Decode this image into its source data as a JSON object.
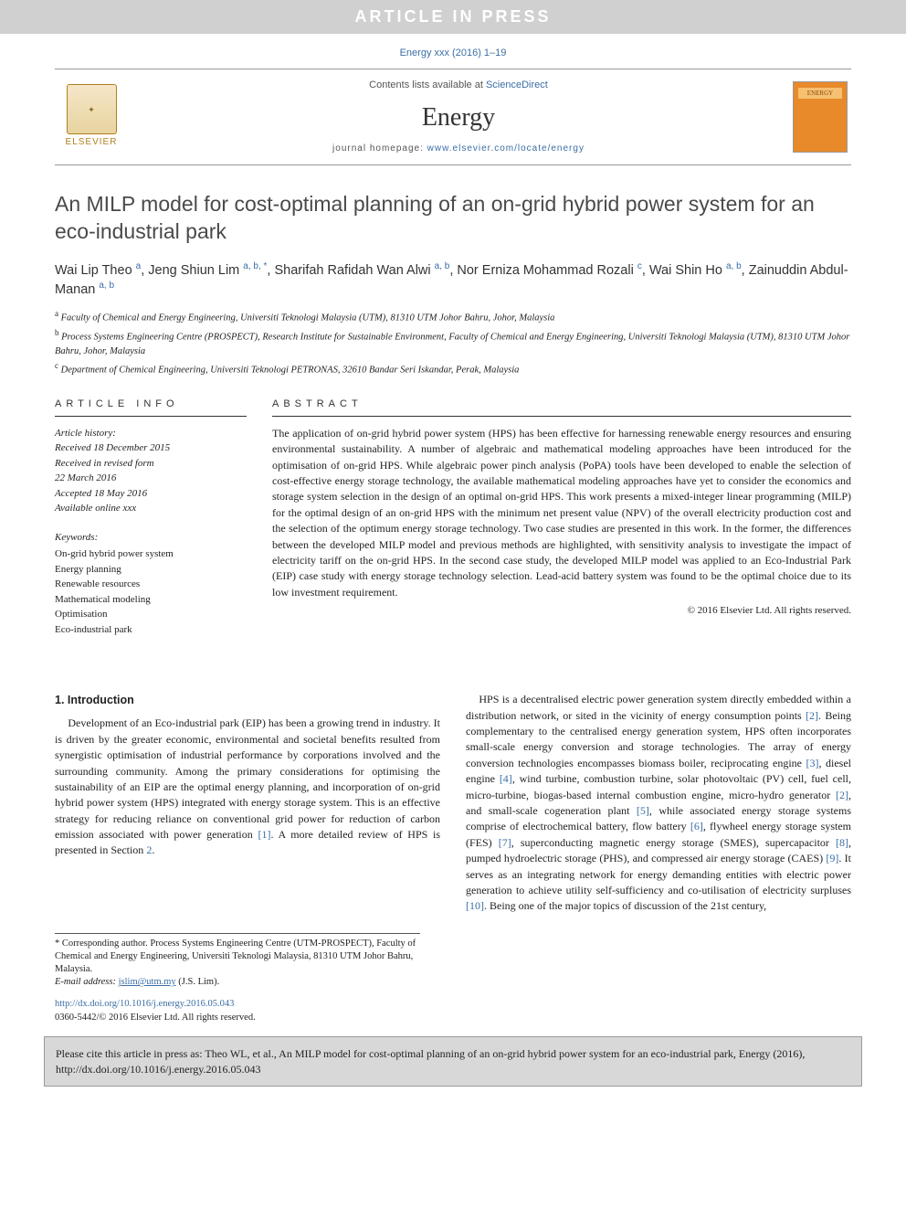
{
  "banner": "ARTICLE IN PRESS",
  "citation_top": "Energy xxx (2016) 1–19",
  "meta": {
    "contents_prefix": "Contents lists available at ",
    "contents_link": "ScienceDirect",
    "journal": "Energy",
    "homepage_prefix": "journal homepage: ",
    "homepage_link": "www.elsevier.com/locate/energy",
    "publisher": "ELSEVIER",
    "cover_label": "ENERGY"
  },
  "title": "An MILP model for cost-optimal planning of an on-grid hybrid power system for an eco-industrial park",
  "authors_html": "Wai Lip Theo <sup>a</sup>, Jeng Shiun Lim <sup>a, b, *</sup>, Sharifah Rafidah Wan Alwi <sup>a, b</sup>, Nor Erniza Mohammad Rozali <sup>c</sup>, Wai Shin Ho <sup>a, b</sup>, Zainuddin Abdul-Manan <sup>a, b</sup>",
  "affiliations": [
    {
      "sup": "a",
      "text": "Faculty of Chemical and Energy Engineering, Universiti Teknologi Malaysia (UTM), 81310 UTM Johor Bahru, Johor, Malaysia"
    },
    {
      "sup": "b",
      "text": "Process Systems Engineering Centre (PROSPECT), Research Institute for Sustainable Environment, Faculty of Chemical and Energy Engineering, Universiti Teknologi Malaysia (UTM), 81310 UTM Johor Bahru, Johor, Malaysia"
    },
    {
      "sup": "c",
      "text": "Department of Chemical Engineering, Universiti Teknologi PETRONAS, 32610 Bandar Seri Iskandar, Perak, Malaysia"
    }
  ],
  "info_head": "ARTICLE INFO",
  "abs_head": "ABSTRACT",
  "history": {
    "label": "Article history:",
    "lines": [
      "Received 18 December 2015",
      "Received in revised form",
      "22 March 2016",
      "Accepted 18 May 2016",
      "Available online xxx"
    ]
  },
  "keywords_label": "Keywords:",
  "keywords": [
    "On-grid hybrid power system",
    "Energy planning",
    "Renewable resources",
    "Mathematical modeling",
    "Optimisation",
    "Eco-industrial park"
  ],
  "abstract": "The application of on-grid hybrid power system (HPS) has been effective for harnessing renewable energy resources and ensuring environmental sustainability. A number of algebraic and mathematical modeling approaches have been introduced for the optimisation of on-grid HPS. While algebraic power pinch analysis (PoPA) tools have been developed to enable the selection of cost-effective energy storage technology, the available mathematical modeling approaches have yet to consider the economics and storage system selection in the design of an optimal on-grid HPS. This work presents a mixed-integer linear programming (MILP) for the optimal design of an on-grid HPS with the minimum net present value (NPV) of the overall electricity production cost and the selection of the optimum energy storage technology. Two case studies are presented in this work. In the former, the differences between the developed MILP model and previous methods are highlighted, with sensitivity analysis to investigate the impact of electricity tariff on the on-grid HPS. In the second case study, the developed MILP model was applied to an Eco-Industrial Park (EIP) case study with energy storage technology selection. Lead-acid battery system was found to be the optimal choice due to its low investment requirement.",
  "copyright": "© 2016 Elsevier Ltd. All rights reserved.",
  "section1_head": "1. Introduction",
  "col1_p1": "Development of an Eco-industrial park (EIP) has been a growing trend in industry. It is driven by the greater economic, environmental and societal benefits resulted from synergistic optimisation of industrial performance by corporations involved and the surrounding community. Among the primary considerations for optimising the sustainability of an EIP are the optimal energy planning, and incorporation of on-grid hybrid power system (HPS) integrated with energy storage system. This is an effective strategy for reducing reliance on conventional grid power for reduction of carbon emission associated with power generation ",
  "col1_ref1": "[1]",
  "col1_p1b": ". A more detailed review of HPS is presented in Section ",
  "col1_ref2": "2",
  "col1_p1c": ".",
  "col2_p1a": "HPS is a decentralised electric power generation system directly embedded within a distribution network, or sited in the vicinity of energy consumption points ",
  "col2_ref2": "[2]",
  "col2_p1b": ". Being complementary to the centralised energy generation system, HPS often incorporates small-scale energy conversion and storage technologies. The array of energy conversion technologies encompasses biomass boiler, reciprocating engine ",
  "col2_ref3": "[3]",
  "col2_p1c": ", diesel engine ",
  "col2_ref4": "[4]",
  "col2_p1d": ", wind turbine, combustion turbine, solar photovoltaic (PV) cell, fuel cell, micro-turbine, biogas-based internal combustion engine, micro-hydro generator ",
  "col2_ref2b": "[2]",
  "col2_p1e": ", and small-scale cogeneration plant ",
  "col2_ref5": "[5]",
  "col2_p1f": ", while associated energy storage systems comprise of electrochemical battery, flow battery ",
  "col2_ref6": "[6]",
  "col2_p1g": ", flywheel energy storage system (FES) ",
  "col2_ref7": "[7]",
  "col2_p1h": ", superconducting magnetic energy storage (SMES), supercapacitor ",
  "col2_ref8": "[8]",
  "col2_p1i": ", pumped hydroelectric storage (PHS), and compressed air energy storage (CAES) ",
  "col2_ref9": "[9]",
  "col2_p1j": ". It serves as an integrating network for energy demanding entities with electric power generation to achieve utility self-sufficiency and co-utilisation of electricity surpluses ",
  "col2_ref10": "[10]",
  "col2_p1k": ". Being one of the major topics of discussion of the 21st century,",
  "footnote": {
    "corr": "* Corresponding author. Process Systems Engineering Centre (UTM-PROSPECT), Faculty of Chemical and Energy Engineering, Universiti Teknologi Malaysia, 81310 UTM Johor Bahru, Malaysia.",
    "email_label": "E-mail address: ",
    "email": "jslim@utm.my",
    "email_suffix": " (J.S. Lim)."
  },
  "doi": {
    "link": "http://dx.doi.org/10.1016/j.energy.2016.05.043",
    "issn": "0360-5442/© 2016 Elsevier Ltd. All rights reserved."
  },
  "citebox": "Please cite this article in press as: Theo WL, et al., An MILP model for cost-optimal planning of an on-grid hybrid power system for an eco-industrial park, Energy (2016), http://dx.doi.org/10.1016/j.energy.2016.05.043"
}
